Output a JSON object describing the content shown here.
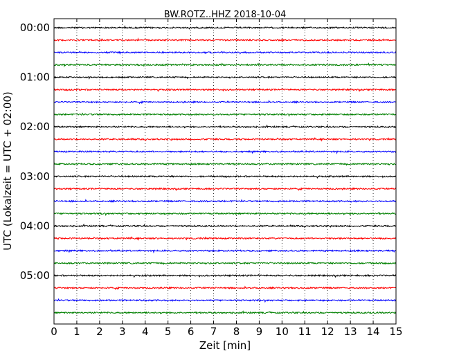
{
  "chart_data": {
    "type": "line",
    "title": "BW.ROTZ..HHZ 2018-10-04",
    "xlabel": "Zeit  [min]",
    "ylabel": "UTC (Lokalzeit = UTC + 02:00)",
    "xlim": [
      0,
      15
    ],
    "xticks": [
      "0",
      "1",
      "2",
      "3",
      "4",
      "5",
      "6",
      "7",
      "8",
      "9",
      "10",
      "11",
      "12",
      "13",
      "14",
      "15"
    ],
    "ytick_labels": [
      "00:00",
      "01:00",
      "02:00",
      "03:00",
      "04:00",
      "05:00"
    ],
    "grid": "vertical-dotted",
    "colors": [
      "#000000",
      "#ff0000",
      "#0000ff",
      "#008000"
    ],
    "series": [
      {
        "offset": "00:00",
        "color": "#000000"
      },
      {
        "offset": "00:15",
        "color": "#ff0000"
      },
      {
        "offset": "00:30",
        "color": "#0000ff"
      },
      {
        "offset": "00:45",
        "color": "#008000"
      },
      {
        "offset": "01:00",
        "color": "#000000"
      },
      {
        "offset": "01:15",
        "color": "#ff0000"
      },
      {
        "offset": "01:30",
        "color": "#0000ff"
      },
      {
        "offset": "01:45",
        "color": "#008000"
      },
      {
        "offset": "02:00",
        "color": "#000000"
      },
      {
        "offset": "02:15",
        "color": "#ff0000"
      },
      {
        "offset": "02:30",
        "color": "#0000ff"
      },
      {
        "offset": "02:45",
        "color": "#008000"
      },
      {
        "offset": "03:00",
        "color": "#000000"
      },
      {
        "offset": "03:15",
        "color": "#ff0000"
      },
      {
        "offset": "03:30",
        "color": "#0000ff"
      },
      {
        "offset": "03:45",
        "color": "#008000"
      },
      {
        "offset": "04:00",
        "color": "#000000"
      },
      {
        "offset": "04:15",
        "color": "#ff0000"
      },
      {
        "offset": "04:30",
        "color": "#0000ff"
      },
      {
        "offset": "04:45",
        "color": "#008000"
      },
      {
        "offset": "05:00",
        "color": "#000000"
      },
      {
        "offset": "05:15",
        "color": "#ff0000"
      },
      {
        "offset": "05:30",
        "color": "#0000ff"
      },
      {
        "offset": "05:45",
        "color": "#008000"
      }
    ]
  }
}
